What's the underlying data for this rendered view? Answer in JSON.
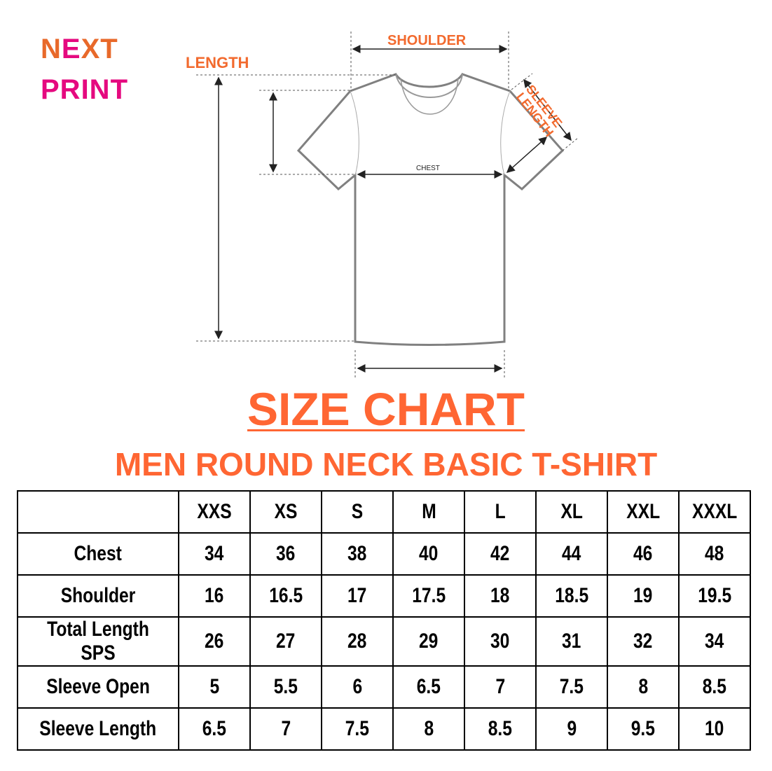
{
  "logo": {
    "line1": "NEXT",
    "line2": "PRINT",
    "colors": {
      "orange": "#E8692A",
      "pink": "#E5097F"
    }
  },
  "diagram": {
    "labels": {
      "shoulder": "SHOULDER",
      "length": "LENGTH",
      "sleeve_length": "SLEEVE LENGTH",
      "chest": "CHEST"
    }
  },
  "title": "SIZE CHART",
  "subtitle": "MEN ROUND NECK BASIC T-SHIRT",
  "accent_color": "#FF6633",
  "table": {
    "headers": [
      "",
      "XXS",
      "XS",
      "S",
      "M",
      "L",
      "XL",
      "XXL",
      "XXXL"
    ],
    "rows": [
      {
        "label": "Chest",
        "values": [
          "34",
          "36",
          "38",
          "40",
          "42",
          "44",
          "46",
          "48"
        ]
      },
      {
        "label": "Shoulder",
        "values": [
          "16",
          "16.5",
          "17",
          "17.5",
          "18",
          "18.5",
          "19",
          "19.5"
        ]
      },
      {
        "label": "Total Length SPS",
        "values": [
          "26",
          "27",
          "28",
          "29",
          "30",
          "31",
          "32",
          "34"
        ]
      },
      {
        "label": "Sleeve Open",
        "values": [
          "5",
          "5.5",
          "6",
          "6.5",
          "7",
          "7.5",
          "8",
          "8.5"
        ]
      },
      {
        "label": "Sleeve Length",
        "values": [
          "6.5",
          "7",
          "7.5",
          "8",
          "8.5",
          "9",
          "9.5",
          "10"
        ]
      }
    ]
  }
}
